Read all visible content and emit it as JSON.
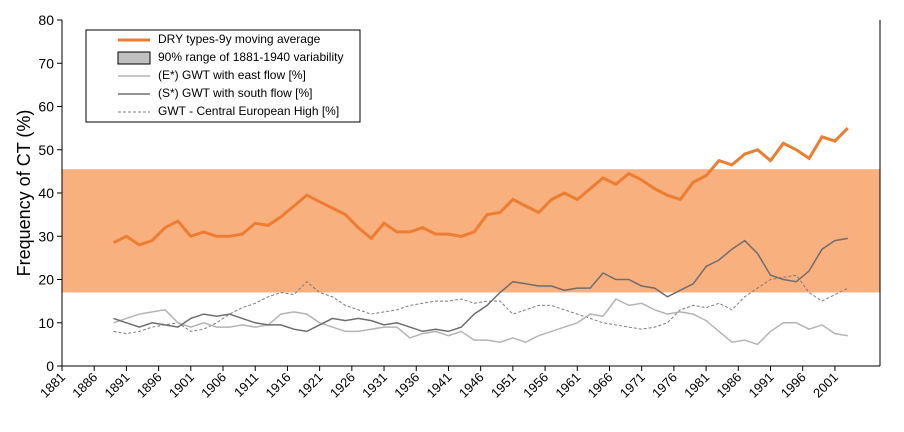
{
  "chart_data": {
    "type": "line",
    "y_label": "Frequency of CT (%)",
    "xlim": [
      1881,
      2008
    ],
    "ylim": [
      0,
      80
    ],
    "yticks": [
      0,
      10,
      20,
      30,
      40,
      50,
      60,
      70,
      80
    ],
    "xticks": [
      1881,
      1886,
      1891,
      1896,
      1901,
      1906,
      1911,
      1916,
      1921,
      1926,
      1931,
      1936,
      1941,
      1946,
      1951,
      1956,
      1961,
      1966,
      1971,
      1976,
      1981,
      1986,
      1991,
      1996,
      2001
    ],
    "band": {
      "name": "90% range of 1881-1940 variability",
      "range": [
        17,
        45.5
      ],
      "color": "#f9b07f",
      "legend_color": "#c0c0c0"
    },
    "x": [
      1889,
      1891,
      1893,
      1895,
      1897,
      1899,
      1901,
      1903,
      1905,
      1907,
      1909,
      1911,
      1913,
      1915,
      1917,
      1919,
      1921,
      1923,
      1925,
      1927,
      1929,
      1931,
      1933,
      1935,
      1937,
      1939,
      1941,
      1943,
      1945,
      1947,
      1949,
      1951,
      1953,
      1955,
      1957,
      1959,
      1961,
      1963,
      1965,
      1967,
      1969,
      1971,
      1973,
      1975,
      1977,
      1979,
      1981,
      1983,
      1985,
      1987,
      1989,
      1991,
      1993,
      1995,
      1997,
      1999,
      2001,
      2003
    ],
    "series": [
      {
        "name": "DRY types-9y moving average",
        "color": "#ed7d31",
        "width": 3,
        "dash": false,
        "values": [
          28.5,
          30,
          28,
          29,
          32,
          33.5,
          30,
          31,
          30,
          30,
          30.5,
          33,
          32.5,
          34.5,
          37,
          39.5,
          38,
          36.5,
          35,
          32,
          29.5,
          33,
          31,
          31,
          32,
          30.5,
          30.5,
          30,
          31,
          35,
          35.5,
          38.5,
          37,
          35.5,
          38.5,
          40,
          38.5,
          41,
          43.5,
          42,
          44.5,
          43,
          41,
          39.5,
          38.5,
          42.5,
          44,
          47.5,
          46.5,
          49,
          50,
          47.5,
          51.5,
          50,
          48,
          53,
          52,
          55
        ]
      },
      {
        "name": "(E*) GWT with east flow [%]",
        "color": "#b4b4b4",
        "width": 1.5,
        "dash": false,
        "values": [
          10,
          11,
          12,
          12.5,
          13,
          10,
          9,
          10,
          9,
          9,
          9.5,
          9,
          9.5,
          12,
          12.5,
          12,
          10,
          9,
          8,
          8,
          8.5,
          9,
          9,
          6.5,
          7.5,
          8,
          7,
          8,
          6,
          6,
          5.5,
          6.5,
          5.5,
          7,
          8,
          9,
          10,
          12,
          11.5,
          15.5,
          14,
          14.5,
          13,
          12,
          12.5,
          12,
          10.5,
          8,
          5.5,
          6,
          5,
          8,
          10,
          10,
          8.5,
          9.5,
          7.5,
          7
        ]
      },
      {
        "name": "(S*) GWT with south flow [%]",
        "color": "#6e6e6e",
        "width": 1.5,
        "dash": false,
        "values": [
          11,
          10,
          9,
          10,
          9.5,
          9,
          11,
          12,
          11.5,
          12,
          11,
          10,
          9.5,
          9.5,
          8.5,
          8,
          9.5,
          11,
          10.5,
          11,
          10.5,
          9.5,
          10,
          9,
          8,
          8.5,
          8,
          9,
          12,
          14,
          17,
          19.5,
          19,
          18.5,
          18.5,
          17.5,
          18,
          18,
          21.5,
          20,
          20,
          18.5,
          18,
          16,
          17.5,
          19,
          23,
          24.5,
          27,
          29,
          26,
          21,
          20,
          19.5,
          22,
          27,
          29,
          29.5
        ]
      },
      {
        "name": "GWT - Central European High [%]",
        "color": "#7a7a7a",
        "width": 1,
        "dash": true,
        "values": [
          8,
          7.5,
          8,
          9,
          9.5,
          10,
          8,
          8.5,
          10,
          12,
          13.5,
          14.5,
          16,
          17,
          16.5,
          19.5,
          17,
          16,
          14,
          13,
          12,
          12.5,
          13,
          14,
          14.5,
          15,
          15,
          15.5,
          14.5,
          15,
          15,
          12,
          13,
          14,
          14,
          13,
          12,
          11,
          10,
          9.5,
          9,
          8.5,
          9,
          10,
          13,
          14,
          13.5,
          14.5,
          13,
          16,
          18,
          20,
          20.5,
          21,
          17,
          15,
          16.5,
          18
        ]
      }
    ]
  }
}
